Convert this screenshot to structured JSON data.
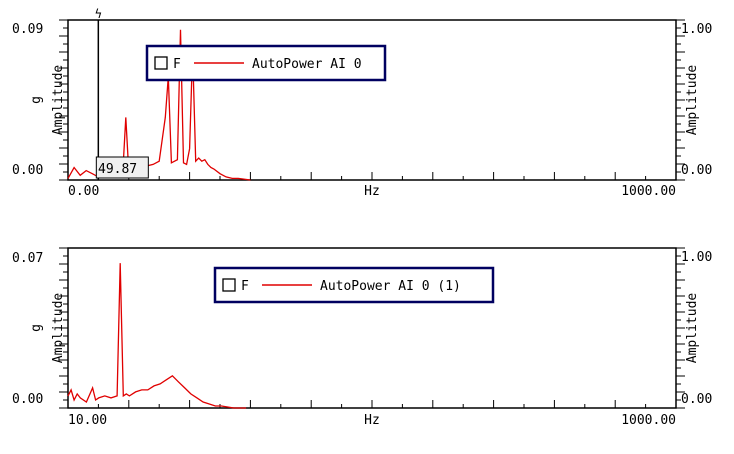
{
  "chart_data": [
    {
      "type": "line",
      "title": "",
      "xlabel": "Hz",
      "ylabel": "Amplitude",
      "yunit": "g",
      "x_tick_labels": [
        "0.00",
        "1000.00"
      ],
      "y_left_tick_labels": [
        "0.09",
        "0.00"
      ],
      "y_right_tick_labels": [
        "1.00",
        "0.00"
      ],
      "xlim": [
        0,
        1000
      ],
      "ylim": [
        0,
        0.09
      ],
      "y2lim": [
        0,
        1
      ],
      "legend": {
        "placement": "top-left",
        "checkbox_label": "F",
        "checked": false,
        "entries": [
          {
            "label": "AutoPower AI 0",
            "color": "#e00000"
          }
        ]
      },
      "cursor": {
        "x": 49.87,
        "label": "49.87",
        "marker": "ϟ"
      },
      "series": [
        {
          "color": "#e00000",
          "x": [
            0,
            10,
            20,
            30,
            40,
            49.87,
            60,
            70,
            80,
            90,
            95,
            100,
            105,
            110,
            120,
            130,
            140,
            150,
            160,
            165,
            170,
            180,
            185,
            190,
            195,
            200,
            205,
            210,
            215,
            220,
            225,
            230,
            235,
            240,
            250,
            260,
            270,
            280,
            300
          ],
          "y": [
            0.001,
            0.008,
            0.003,
            0.006,
            0.004,
            0.002,
            0.003,
            0.005,
            0.003,
            0.004,
            0.04,
            0.005,
            0.006,
            0.007,
            0.008,
            0.009,
            0.01,
            0.012,
            0.04,
            0.066,
            0.011,
            0.013,
            0.096,
            0.011,
            0.01,
            0.02,
            0.083,
            0.012,
            0.014,
            0.012,
            0.013,
            0.01,
            0.008,
            0.007,
            0.004,
            0.002,
            0.001,
            0.001,
            0.0
          ]
        }
      ]
    },
    {
      "type": "line",
      "title": "",
      "xlabel": "Hz",
      "ylabel": "Amplitude",
      "yunit": "g",
      "x_tick_labels": [
        "10.00",
        "1000.00"
      ],
      "y_left_tick_labels": [
        "0.07",
        "0.00"
      ],
      "y_right_tick_labels": [
        "1.00",
        "0.00"
      ],
      "xlim": [
        10,
        1000
      ],
      "ylim": [
        0,
        0.07
      ],
      "y2lim": [
        0,
        1
      ],
      "legend": {
        "placement": "top-center",
        "checkbox_label": "F",
        "checked": false,
        "entries": [
          {
            "label": "AutoPower AI 0 (1)",
            "color": "#e00000"
          }
        ]
      },
      "series": [
        {
          "color": "#e00000",
          "x": [
            10,
            15,
            20,
            25,
            30,
            40,
            50,
            55,
            60,
            70,
            80,
            90,
            95,
            100,
            105,
            110,
            120,
            130,
            140,
            150,
            160,
            170,
            180,
            190,
            200,
            210,
            220,
            230,
            240,
            250,
            260,
            280,
            300
          ],
          "y": [
            0.006,
            0.009,
            0.004,
            0.007,
            0.005,
            0.003,
            0.01,
            0.004,
            0.005,
            0.006,
            0.005,
            0.006,
            0.072,
            0.006,
            0.007,
            0.006,
            0.008,
            0.009,
            0.009,
            0.011,
            0.012,
            0.014,
            0.016,
            0.013,
            0.01,
            0.007,
            0.005,
            0.003,
            0.002,
            0.001,
            0.001,
            0.0,
            0.0
          ]
        }
      ]
    }
  ]
}
